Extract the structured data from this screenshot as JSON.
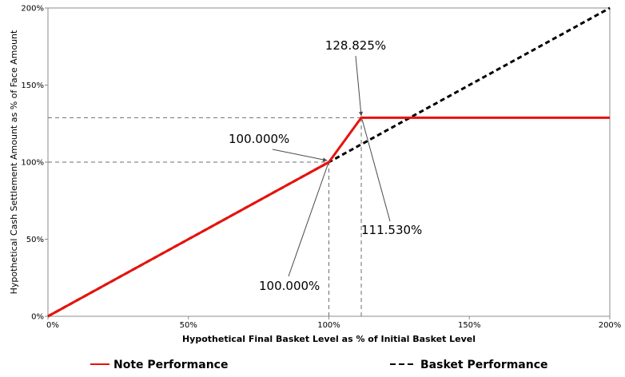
{
  "chart_data": {
    "type": "line",
    "xlabel": "Hypothetical Final Basket Level as % of Initial Basket Level",
    "ylabel": "Hypothetical Cash Settlement Amount as % of Face Amount",
    "xlim": [
      0,
      200
    ],
    "ylim": [
      0,
      200
    ],
    "x_ticks": [
      0,
      50,
      100,
      150,
      200
    ],
    "y_ticks": [
      0,
      50,
      100,
      150,
      200
    ],
    "x_tick_labels": [
      "0%",
      "50%",
      "100%",
      "150%",
      "200%"
    ],
    "y_tick_labels": [
      "0%",
      "50%",
      "100%",
      "150%",
      "200%"
    ],
    "grid": false,
    "legend_position": "bottom",
    "series": [
      {
        "name": "Note Performance",
        "color": "#e8120c",
        "style": "solid",
        "points": [
          [
            0,
            0
          ],
          [
            100,
            100
          ],
          [
            111.53,
            128.825
          ],
          [
            200,
            128.825
          ]
        ]
      },
      {
        "name": "Basket Performance",
        "color": "#000000",
        "style": "dashed",
        "points": [
          [
            0,
            0
          ],
          [
            200,
            200
          ]
        ]
      }
    ],
    "reference_lines": [
      {
        "type": "horizontal",
        "y": 128.825,
        "x_from": 0,
        "x_to": 200
      },
      {
        "type": "horizontal",
        "y": 100,
        "x_from": 0,
        "x_to": 100
      },
      {
        "type": "vertical",
        "x": 100,
        "y_from": 0,
        "y_to": 100
      },
      {
        "type": "vertical",
        "x": 111.53,
        "y_from": 0,
        "y_to": 128.825
      }
    ],
    "annotations": [
      {
        "text": "128.825%",
        "point": [
          111.53,
          128.825
        ],
        "text_position": "above",
        "name": "annotation-cap-level"
      },
      {
        "text": "100.000%",
        "point": [
          100,
          100
        ],
        "text_position": "upper-left",
        "name": "annotation-upper-100"
      },
      {
        "text": "111.530%",
        "point": [
          111.53,
          128.825
        ],
        "text_position": "lower-right",
        "name": "annotation-max-return-level"
      },
      {
        "text": "100.000%",
        "point": [
          100,
          100
        ],
        "text_position": "lower-left",
        "name": "annotation-lower-100"
      }
    ]
  }
}
